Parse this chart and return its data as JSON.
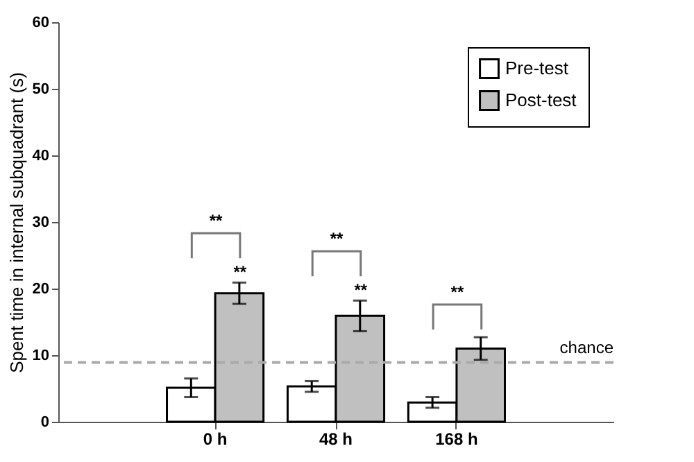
{
  "chart_data": {
    "type": "bar",
    "ylabel": "Spent time in internal subquadrant (s)",
    "categories": [
      "0 h",
      "48 h",
      "168 h"
    ],
    "series": [
      {
        "name": "Pre-test",
        "color": "#ffffff",
        "values": [
          5.1,
          5.3,
          2.9
        ],
        "errors": [
          1.4,
          0.8,
          0.8
        ]
      },
      {
        "name": "Post-test",
        "color": "#c0c0c0",
        "values": [
          19.3,
          15.9,
          11.0
        ],
        "errors": [
          1.6,
          2.3,
          1.7
        ]
      }
    ],
    "ylim": [
      0,
      60
    ],
    "yticks": [
      0,
      10,
      20,
      30,
      40,
      50,
      60
    ],
    "grid": false,
    "legend": "top right",
    "ref_lines": [
      {
        "axis": "y",
        "value": 8.9,
        "label": "chance",
        "color": "#aaaaaa",
        "line_style": "dashed"
      }
    ],
    "annotations": [
      "**",
      "**",
      "**",
      "**",
      "**"
    ]
  }
}
